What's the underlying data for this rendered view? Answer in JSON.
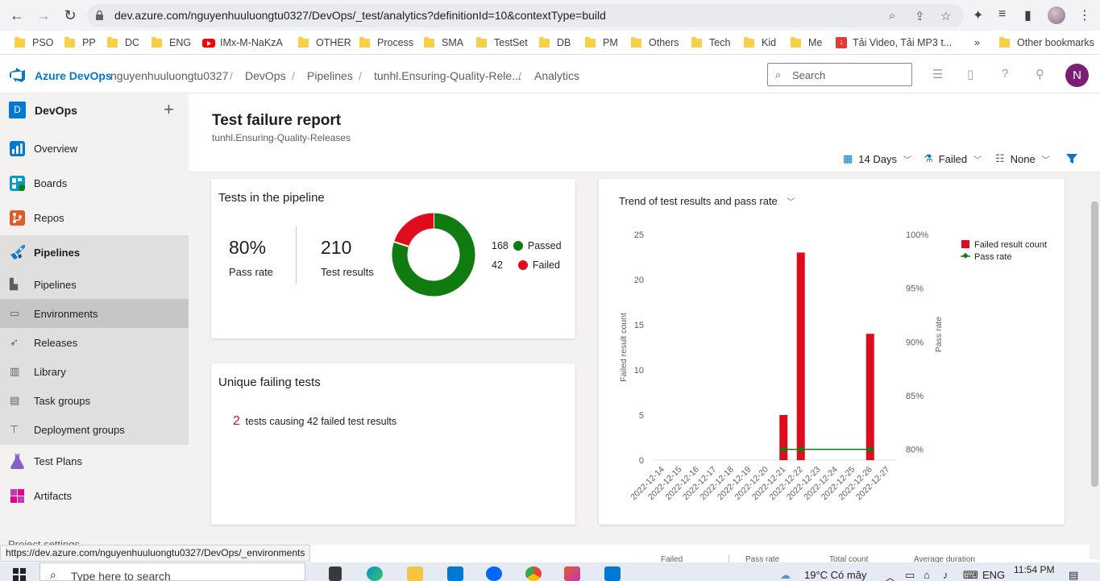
{
  "browser": {
    "url": "dev.azure.com/nguyenhuuluongtu0327/DevOps/_test/analytics?definitionId=10&contextType=build",
    "bookmarks": [
      "PSO",
      "PP",
      "DC",
      "ENG",
      "IMx-M-NaKzA",
      "OTHER",
      "Process",
      "SMA",
      "TestSet",
      "DB",
      "PM",
      "Others",
      "Tech",
      "Kid",
      "Me",
      "Tải Video, Tải MP3 t..."
    ],
    "more": "»",
    "other_bookmarks": "Other bookmarks",
    "status_url": "https://dev.azure.com/nguyenhuuluongtu0327/DevOps/_environments"
  },
  "ado": {
    "brand": "Azure DevOps",
    "breadcrumb": [
      "nguyenhuuluongtu0327",
      "DevOps",
      "Pipelines",
      "tunhl.Ensuring-Quality-Rele...",
      "Analytics"
    ],
    "search_placeholder": "Search",
    "user_initial": "N"
  },
  "sidebar": {
    "project_initial": "D",
    "project_name": "DevOps",
    "items": [
      "Overview",
      "Boards",
      "Repos",
      "Pipelines"
    ],
    "pipeline_sub": [
      "Pipelines",
      "Environments",
      "Releases",
      "Library",
      "Task groups",
      "Deployment groups"
    ],
    "bottom_items": [
      "Test Plans",
      "Artifacts"
    ],
    "settings": "Project settings"
  },
  "page": {
    "title": "Test failure report",
    "subtitle": "tunhl.Ensuring-Quality-Releases",
    "filters": {
      "days": "14 Days",
      "outcome": "Failed",
      "group": "None"
    }
  },
  "pipeline_card": {
    "title": "Tests in the pipeline",
    "pass_rate": "80%",
    "pass_rate_label": "Pass rate",
    "total": "210",
    "total_label": "Test results",
    "passed_count": "168",
    "passed_label": "Passed",
    "failed_count": "42",
    "failed_label": "Failed",
    "colors": {
      "passed": "#107c10",
      "failed": "#e00b1c"
    }
  },
  "unique_card": {
    "title": "Unique failing tests",
    "count": "2",
    "text": "tests causing 42 failed test results"
  },
  "trend_card": {
    "title": "Trend of test results and pass rate"
  },
  "bottom_table": {
    "headers": [
      "Failed",
      "Pass rate",
      "Total count",
      "Average duration"
    ]
  },
  "taskbar": {
    "search_placeholder": "Type here to search",
    "weather": "19°C  Có mây",
    "lang": "ENG",
    "time": "11:54 PM"
  },
  "chart_data": [
    {
      "type": "pie",
      "categories": [
        "Passed",
        "Failed"
      ],
      "values": [
        168,
        42
      ]
    },
    {
      "type": "bar",
      "title": "Trend of test results and pass rate",
      "categories": [
        "2022-12-14",
        "2022-12-15",
        "2022-12-16",
        "2022-12-17",
        "2022-12-18",
        "2022-12-19",
        "2022-12-20",
        "2022-12-21",
        "2022-12-22",
        "2022-12-23",
        "2022-12-24",
        "2022-12-25",
        "2022-12-26",
        "2022-12-27"
      ],
      "series": [
        {
          "name": "Failed result count",
          "values": [
            0,
            0,
            0,
            0,
            0,
            0,
            0,
            5,
            23,
            0,
            0,
            0,
            14,
            0
          ],
          "color": "#e00b1c"
        },
        {
          "name": "Pass rate",
          "type": "line",
          "values": [
            null,
            null,
            null,
            null,
            null,
            null,
            null,
            80,
            80,
            null,
            null,
            null,
            80,
            null
          ],
          "color": "#107c10"
        }
      ],
      "ylabel": "Failed result count",
      "y2label": "Pass rate",
      "ylim": [
        0,
        25
      ],
      "yticks": [
        0,
        5,
        10,
        15,
        20,
        25
      ],
      "y2lim": [
        79,
        100
      ],
      "y2ticks": [
        "80%",
        "85%",
        "90%",
        "95%",
        "100%"
      ],
      "legend": "top-right"
    }
  ]
}
